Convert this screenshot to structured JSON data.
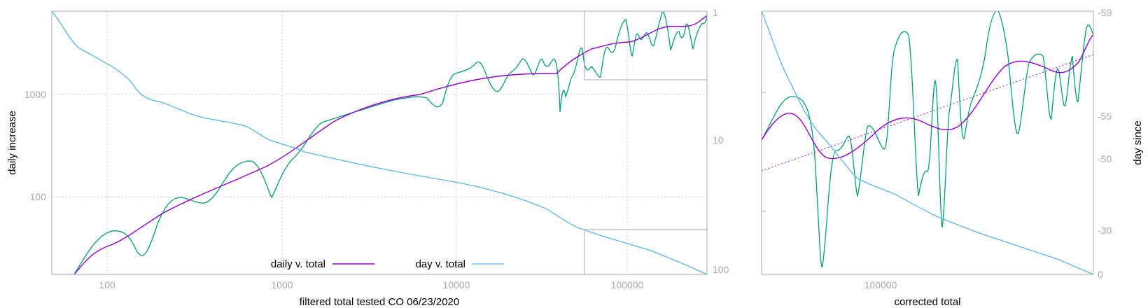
{
  "colors": {
    "daily": "#9400d3",
    "day": "#56b4e9",
    "raw": "#009e73",
    "frame": "#a8a8a8",
    "grid": "#c8c8c8",
    "trend": "#9400d3"
  },
  "left": {
    "xlabel": "filtered total tested CO 06/23/2020",
    "ylabel": "daily increase",
    "xticks": [
      "100",
      "1000",
      "10000",
      "100000"
    ],
    "yticks": [
      "100",
      "1000"
    ],
    "y2ticks": [
      "1",
      "10",
      "100"
    ]
  },
  "right": {
    "xlabel": "corrected total",
    "y2label": "day since",
    "xticks": [
      "100000"
    ],
    "y2ticks": [
      "-59",
      "-55",
      "-50",
      "-30",
      "0"
    ]
  },
  "legend": {
    "daily": "daily v. total",
    "day": "day v. total"
  },
  "chart_data": [
    {
      "type": "line",
      "title": "",
      "xlabel": "filtered total tested CO 06/23/2020",
      "ylabel": "daily increase",
      "x_scale": "log",
      "y_scale": "log",
      "xlim": [
        45,
        290000
      ],
      "ylim": [
        18,
        6500
      ],
      "y2_scale": "log",
      "y2lim": [
        1,
        112
      ],
      "y2_reversed": true,
      "grid": true,
      "legend_position": "bottom-center",
      "series": [
        {
          "name": "daily v. total",
          "axis": "y",
          "points": [
            [
              65,
              18
            ],
            [
              80,
              27
            ],
            [
              100,
              33
            ],
            [
              150,
              42
            ],
            [
              200,
              56
            ],
            [
              300,
              82
            ],
            [
              500,
              130
            ],
            [
              700,
              175
            ],
            [
              1000,
              250
            ],
            [
              1500,
              380
            ],
            [
              2000,
              480
            ],
            [
              3000,
              650
            ],
            [
              5000,
              900
            ],
            [
              7000,
              1100
            ],
            [
              10000,
              1300
            ],
            [
              15000,
              1500
            ],
            [
              20000,
              1560
            ],
            [
              30000,
              1580
            ],
            [
              40000,
              1560
            ],
            [
              50000,
              1800
            ],
            [
              60000,
              2100
            ],
            [
              80000,
              2500
            ],
            [
              100000,
              2700
            ],
            [
              130000,
              2800
            ],
            [
              160000,
              3200
            ],
            [
              200000,
              3800
            ],
            [
              250000,
              3800
            ],
            [
              280000,
              4400
            ]
          ]
        },
        {
          "name": "day v. total",
          "axis": "y2",
          "points": [
            [
              45,
              1
            ],
            [
              60,
              2
            ],
            [
              80,
              2.5
            ],
            [
              120,
              3
            ],
            [
              160,
              4.5
            ],
            [
              250,
              5
            ],
            [
              400,
              6.5
            ],
            [
              600,
              7.5
            ],
            [
              800,
              9
            ],
            [
              1300,
              12
            ],
            [
              2000,
              14
            ],
            [
              4000,
              17
            ],
            [
              7000,
              20
            ],
            [
              10000,
              23
            ],
            [
              20000,
              28
            ],
            [
              30000,
              37
            ],
            [
              40000,
              40
            ],
            [
              55000,
              49
            ],
            [
              80000,
              53
            ],
            [
              100000,
              58
            ],
            [
              150000,
              65
            ],
            [
              200000,
              75
            ],
            [
              250000,
              90
            ],
            [
              290000,
              100
            ]
          ]
        },
        {
          "axis": "y",
          "points": [
            [
              65,
              18
            ],
            [
              80,
              30
            ],
            [
              100,
              42
            ],
            [
              130,
              42
            ],
            [
              165,
              21
            ],
            [
              200,
              45
            ],
            [
              250,
              90
            ],
            [
              300,
              98
            ],
            [
              400,
              92
            ],
            [
              450,
              120
            ],
            [
              500,
              165
            ],
            [
              600,
              220
            ],
            [
              700,
              165
            ],
            [
              800,
              98
            ],
            [
              900,
              135
            ],
            [
              1200,
              200
            ],
            [
              1500,
              350
            ],
            [
              2000,
              480
            ],
            [
              3000,
              600
            ],
            [
              5000,
              900
            ],
            [
              6000,
              880
            ],
            [
              7000,
              1100
            ],
            [
              8000,
              800
            ],
            [
              9000,
              1350
            ],
            [
              10000,
              1500
            ],
            [
              13000,
              1700
            ],
            [
              16000,
              1950
            ],
            [
              18000,
              1050
            ],
            [
              22000,
              1550
            ],
            [
              26000,
              1150
            ],
            [
              30000,
              2100
            ],
            [
              33000,
              1300
            ],
            [
              36000,
              2000
            ],
            [
              40000,
              650
            ],
            [
              45000,
              1500
            ],
            [
              50000,
              1400
            ],
            [
              55000,
              3300
            ],
            [
              60000,
              2300
            ],
            [
              65000,
              1200
            ],
            [
              75000,
              3000
            ],
            [
              85000,
              2700
            ],
            [
              95000,
              3400
            ],
            [
              110000,
              4000
            ],
            [
              120000,
              5500
            ],
            [
              135000,
              2400
            ],
            [
              150000,
              4500
            ],
            [
              170000,
              3300
            ],
            [
              185000,
              6500
            ],
            [
              200000,
              4300
            ],
            [
              225000,
              3300
            ],
            [
              250000,
              4600
            ],
            [
              270000,
              3700
            ],
            [
              285000,
              5900
            ]
          ]
        }
      ]
    },
    {
      "type": "line",
      "title": "",
      "xlabel": "corrected total",
      "ylabel": "",
      "x_scale": "log",
      "xlim": [
        55000,
        290000
      ],
      "y2label": "day since",
      "y2_ticks": [
        "-59",
        "-55",
        "-50",
        "-30",
        "0"
      ],
      "series": [
        {
          "name": "daily v. total",
          "points": [
            [
              55000,
              2000
            ],
            [
              62000,
              2900
            ],
            [
              70000,
              2000
            ],
            [
              80000,
              2300
            ],
            [
              100000,
              2800
            ],
            [
              120000,
              2600
            ],
            [
              140000,
              2400
            ],
            [
              170000,
              3400
            ],
            [
              200000,
              4400
            ],
            [
              240000,
              3700
            ],
            [
              290000,
              5400
            ]
          ]
        },
        {
          "name": "day v. total",
          "points": [
            [
              55000,
              1
            ],
            [
              65000,
              10
            ],
            [
              80000,
              30
            ],
            [
              110000,
              40
            ],
            [
              150000,
              60
            ],
            [
              200000,
              75
            ],
            [
              290000,
              100
            ]
          ]
        },
        {
          "points": [
            [
              55000,
              2000
            ],
            [
              62000,
              3200
            ],
            [
              65000,
              1900
            ],
            [
              70000,
              300
            ],
            [
              78000,
              1600
            ],
            [
              85000,
              800
            ],
            [
              100000,
              5200
            ],
            [
              110000,
              5300
            ],
            [
              120000,
              800
            ],
            [
              135000,
              4000
            ],
            [
              150000,
              600
            ],
            [
              170000,
              2800
            ],
            [
              200000,
              5000
            ],
            [
              220000,
              6500
            ],
            [
              250000,
              2300
            ],
            [
              270000,
              3800
            ],
            [
              285000,
              5800
            ],
            [
              290000,
              5400
            ]
          ]
        },
        {
          "points": [
            [
              55000,
              1300
            ],
            [
              290000,
              4300
            ]
          ]
        }
      ]
    }
  ]
}
